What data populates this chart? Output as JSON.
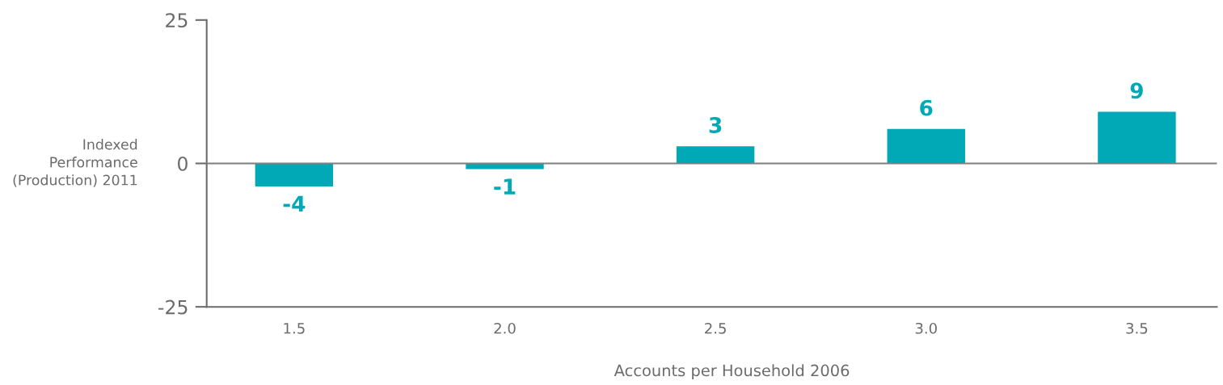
{
  "chart_data": {
    "type": "bar",
    "xlabel": "Accounts per Household 2006",
    "ylabel": "Indexed\nPerformance\n(Production) 2011",
    "categories": [
      "1.5",
      "2.0",
      "2.5",
      "3.0",
      "3.5"
    ],
    "values": [
      -4,
      -1,
      3,
      6,
      9
    ],
    "color": "#00a9b5",
    "data_labels": true,
    "ylim": [
      -25,
      25
    ],
    "yticks": [
      -25,
      0,
      25
    ],
    "ref_lines": [
      {
        "axis": "y",
        "value": 0,
        "label": null,
        "color": "#7f7f7f"
      }
    ],
    "grid": false,
    "legend": false
  }
}
